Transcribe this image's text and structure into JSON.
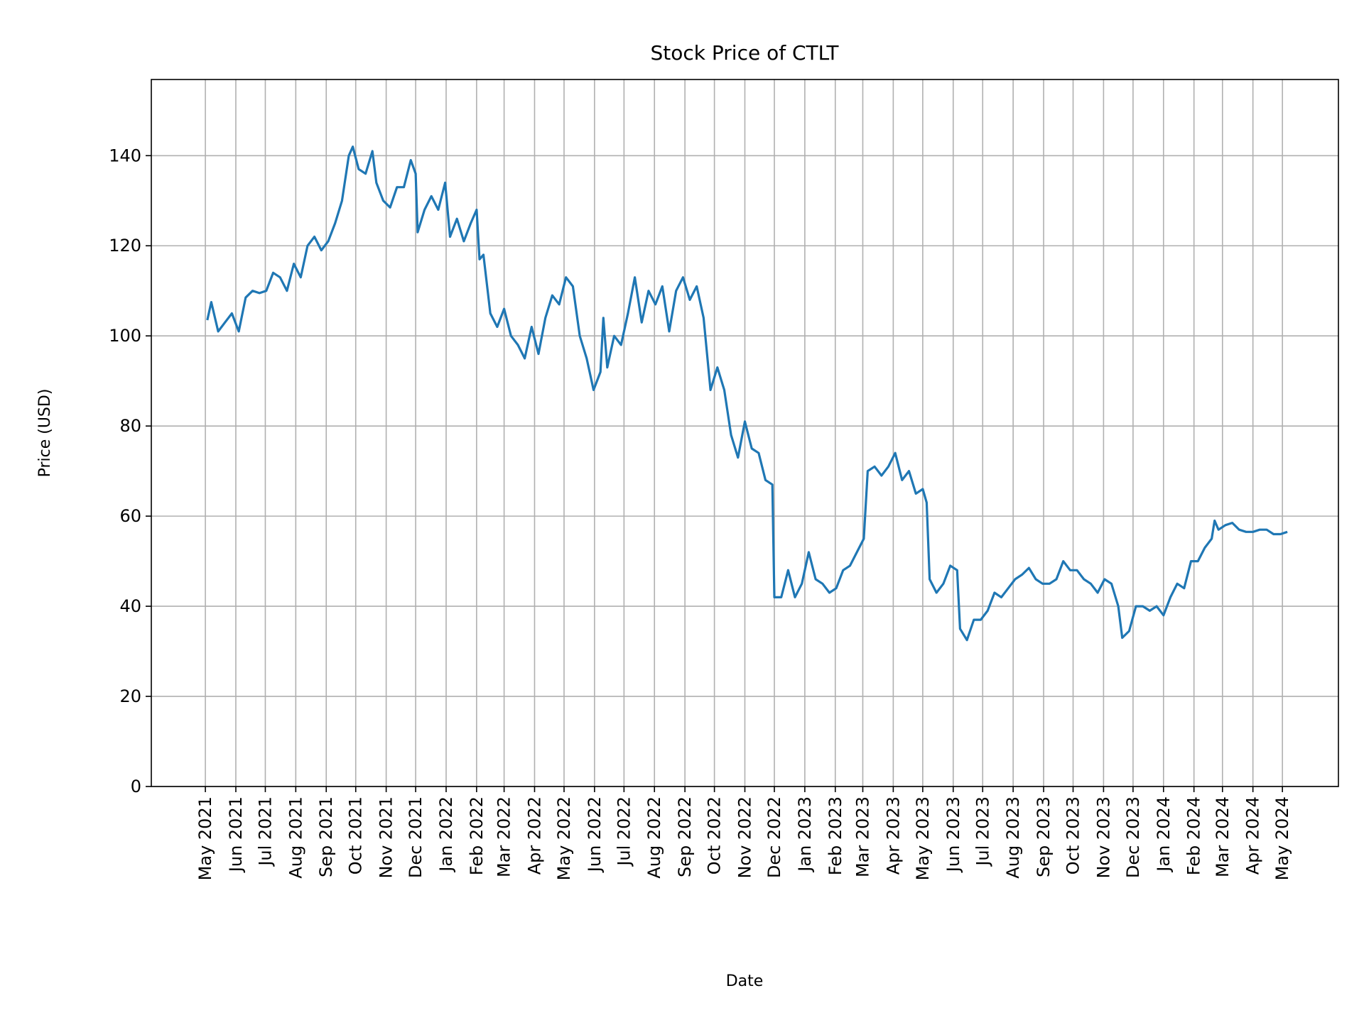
{
  "chart_data": {
    "type": "line",
    "title": "Stock Price of CTLT",
    "xlabel": "Date",
    "ylabel": "Price (USD)",
    "ylim": [
      0,
      156.9
    ],
    "xlim": [
      "2021-03-07",
      "2024-06-27"
    ],
    "grid": true,
    "line_color": "#1f77b4",
    "yticks": [
      0,
      20,
      40,
      60,
      80,
      100,
      120,
      140
    ],
    "xticks": [
      {
        "date": "2021-05-01",
        "label": "May 2021"
      },
      {
        "date": "2021-06-01",
        "label": "Jun 2021"
      },
      {
        "date": "2021-07-01",
        "label": "Jul 2021"
      },
      {
        "date": "2021-08-01",
        "label": "Aug 2021"
      },
      {
        "date": "2021-09-01",
        "label": "Sep 2021"
      },
      {
        "date": "2021-10-01",
        "label": "Oct 2021"
      },
      {
        "date": "2021-11-01",
        "label": "Nov 2021"
      },
      {
        "date": "2021-12-01",
        "label": "Dec 2021"
      },
      {
        "date": "2022-01-01",
        "label": "Jan 2022"
      },
      {
        "date": "2022-02-01",
        "label": "Feb 2022"
      },
      {
        "date": "2022-03-01",
        "label": "Mar 2022"
      },
      {
        "date": "2022-04-01",
        "label": "Apr 2022"
      },
      {
        "date": "2022-05-01",
        "label": "May 2022"
      },
      {
        "date": "2022-06-01",
        "label": "Jun 2022"
      },
      {
        "date": "2022-07-01",
        "label": "Jul 2022"
      },
      {
        "date": "2022-08-01",
        "label": "Aug 2022"
      },
      {
        "date": "2022-09-01",
        "label": "Sep 2022"
      },
      {
        "date": "2022-10-01",
        "label": "Oct 2022"
      },
      {
        "date": "2022-11-01",
        "label": "Nov 2022"
      },
      {
        "date": "2022-12-01",
        "label": "Dec 2022"
      },
      {
        "date": "2023-01-01",
        "label": "Jan 2023"
      },
      {
        "date": "2023-02-01",
        "label": "Feb 2023"
      },
      {
        "date": "2023-03-01",
        "label": "Mar 2023"
      },
      {
        "date": "2023-04-01",
        "label": "Apr 2023"
      },
      {
        "date": "2023-05-01",
        "label": "May 2023"
      },
      {
        "date": "2023-06-01",
        "label": "Jun 2023"
      },
      {
        "date": "2023-07-01",
        "label": "Jul 2023"
      },
      {
        "date": "2023-08-01",
        "label": "Aug 2023"
      },
      {
        "date": "2023-09-01",
        "label": "Sep 2023"
      },
      {
        "date": "2023-10-01",
        "label": "Oct 2023"
      },
      {
        "date": "2023-11-01",
        "label": "Nov 2023"
      },
      {
        "date": "2023-12-01",
        "label": "Dec 2023"
      },
      {
        "date": "2024-01-01",
        "label": "Jan 2024"
      },
      {
        "date": "2024-02-01",
        "label": "Feb 2024"
      },
      {
        "date": "2024-03-01",
        "label": "Mar 2024"
      },
      {
        "date": "2024-04-01",
        "label": "Apr 2024"
      },
      {
        "date": "2024-05-01",
        "label": "May 2024"
      }
    ],
    "series": [
      {
        "x": [
          "2021-05-03",
          "2021-05-07",
          "2021-05-14",
          "2021-05-21",
          "2021-05-28",
          "2021-06-04",
          "2021-06-11",
          "2021-06-18",
          "2021-06-25",
          "2021-07-02",
          "2021-07-09",
          "2021-07-16",
          "2021-07-23",
          "2021-07-30",
          "2021-08-06",
          "2021-08-13",
          "2021-08-20",
          "2021-08-27",
          "2021-09-03",
          "2021-09-10",
          "2021-09-17",
          "2021-09-24",
          "2021-09-28",
          "2021-10-04",
          "2021-10-11",
          "2021-10-18",
          "2021-10-22",
          "2021-10-29",
          "2021-11-05",
          "2021-11-12",
          "2021-11-19",
          "2021-11-26",
          "2021-12-01",
          "2021-12-03",
          "2021-12-10",
          "2021-12-17",
          "2021-12-24",
          "2021-12-31",
          "2022-01-05",
          "2022-01-12",
          "2022-01-19",
          "2022-01-26",
          "2022-02-01",
          "2022-02-04",
          "2022-02-08",
          "2022-02-15",
          "2022-02-22",
          "2022-03-01",
          "2022-03-08",
          "2022-03-15",
          "2022-03-22",
          "2022-03-29",
          "2022-04-05",
          "2022-04-12",
          "2022-04-19",
          "2022-04-26",
          "2022-05-03",
          "2022-05-10",
          "2022-05-17",
          "2022-05-24",
          "2022-05-31",
          "2022-06-07",
          "2022-06-10",
          "2022-06-14",
          "2022-06-21",
          "2022-06-28",
          "2022-07-05",
          "2022-07-12",
          "2022-07-19",
          "2022-07-26",
          "2022-08-02",
          "2022-08-09",
          "2022-08-16",
          "2022-08-23",
          "2022-08-30",
          "2022-09-06",
          "2022-09-13",
          "2022-09-20",
          "2022-09-27",
          "2022-10-04",
          "2022-10-11",
          "2022-10-18",
          "2022-10-25",
          "2022-11-01",
          "2022-11-08",
          "2022-11-15",
          "2022-11-22",
          "2022-11-29",
          "2022-12-01",
          "2022-12-08",
          "2022-12-15",
          "2022-12-22",
          "2022-12-29",
          "2023-01-05",
          "2023-01-12",
          "2023-01-19",
          "2023-01-26",
          "2023-02-02",
          "2023-02-09",
          "2023-02-16",
          "2023-02-23",
          "2023-03-02",
          "2023-03-06",
          "2023-03-13",
          "2023-03-20",
          "2023-03-27",
          "2023-04-03",
          "2023-04-10",
          "2023-04-17",
          "2023-04-24",
          "2023-05-01",
          "2023-05-05",
          "2023-05-08",
          "2023-05-15",
          "2023-05-22",
          "2023-05-29",
          "2023-06-05",
          "2023-06-08",
          "2023-06-15",
          "2023-06-22",
          "2023-06-29",
          "2023-07-06",
          "2023-07-13",
          "2023-07-20",
          "2023-07-27",
          "2023-08-03",
          "2023-08-10",
          "2023-08-17",
          "2023-08-24",
          "2023-08-31",
          "2023-09-07",
          "2023-09-14",
          "2023-09-21",
          "2023-09-28",
          "2023-10-05",
          "2023-10-12",
          "2023-10-19",
          "2023-10-26",
          "2023-11-02",
          "2023-11-09",
          "2023-11-16",
          "2023-11-20",
          "2023-11-27",
          "2023-12-04",
          "2023-12-11",
          "2023-12-18",
          "2023-12-25",
          "2024-01-01",
          "2024-01-08",
          "2024-01-15",
          "2024-01-22",
          "2024-01-29",
          "2024-02-05",
          "2024-02-12",
          "2024-02-19",
          "2024-02-22",
          "2024-02-26",
          "2024-03-04",
          "2024-03-11",
          "2024-03-18",
          "2024-03-25",
          "2024-04-01",
          "2024-04-08",
          "2024-04-15",
          "2024-04-22",
          "2024-04-29",
          "2024-05-06"
        ],
        "y": [
          103.5,
          107.5,
          101,
          103,
          105,
          101,
          108.5,
          110,
          109.5,
          110,
          114,
          113,
          110,
          116,
          113,
          120,
          122,
          119,
          121,
          125,
          130,
          140,
          142,
          137,
          136,
          141,
          134,
          130,
          128.5,
          133,
          133,
          139,
          136,
          123,
          128,
          131,
          128,
          134,
          122,
          126,
          121,
          125,
          128,
          117,
          118,
          105,
          102,
          106,
          100,
          98,
          95,
          102,
          96,
          104,
          109,
          107,
          113,
          111,
          100,
          95,
          88,
          92,
          104,
          93,
          100,
          98,
          105,
          113,
          103,
          110,
          107,
          111,
          101,
          110,
          113,
          108,
          111,
          104,
          88,
          93,
          88,
          78,
          73,
          81,
          75,
          74,
          68,
          67,
          42,
          42,
          48,
          42,
          45,
          52,
          46,
          45,
          43,
          44,
          48,
          49,
          52,
          55,
          70,
          71,
          69,
          71,
          74,
          68,
          70,
          65,
          66,
          63,
          46,
          43,
          45,
          49,
          48,
          35,
          32.5,
          37,
          37,
          39,
          43,
          42,
          44,
          46,
          47,
          48.5,
          46,
          45,
          45,
          46,
          50,
          48,
          48,
          46,
          45,
          43,
          46,
          45,
          40,
          33,
          34.5,
          40,
          40,
          39,
          40,
          38,
          42,
          45,
          44,
          50,
          50,
          53,
          55,
          59,
          57,
          58,
          58.5,
          57,
          56.5,
          56.5,
          57,
          57,
          56,
          56,
          56.5
        ]
      }
    ]
  }
}
